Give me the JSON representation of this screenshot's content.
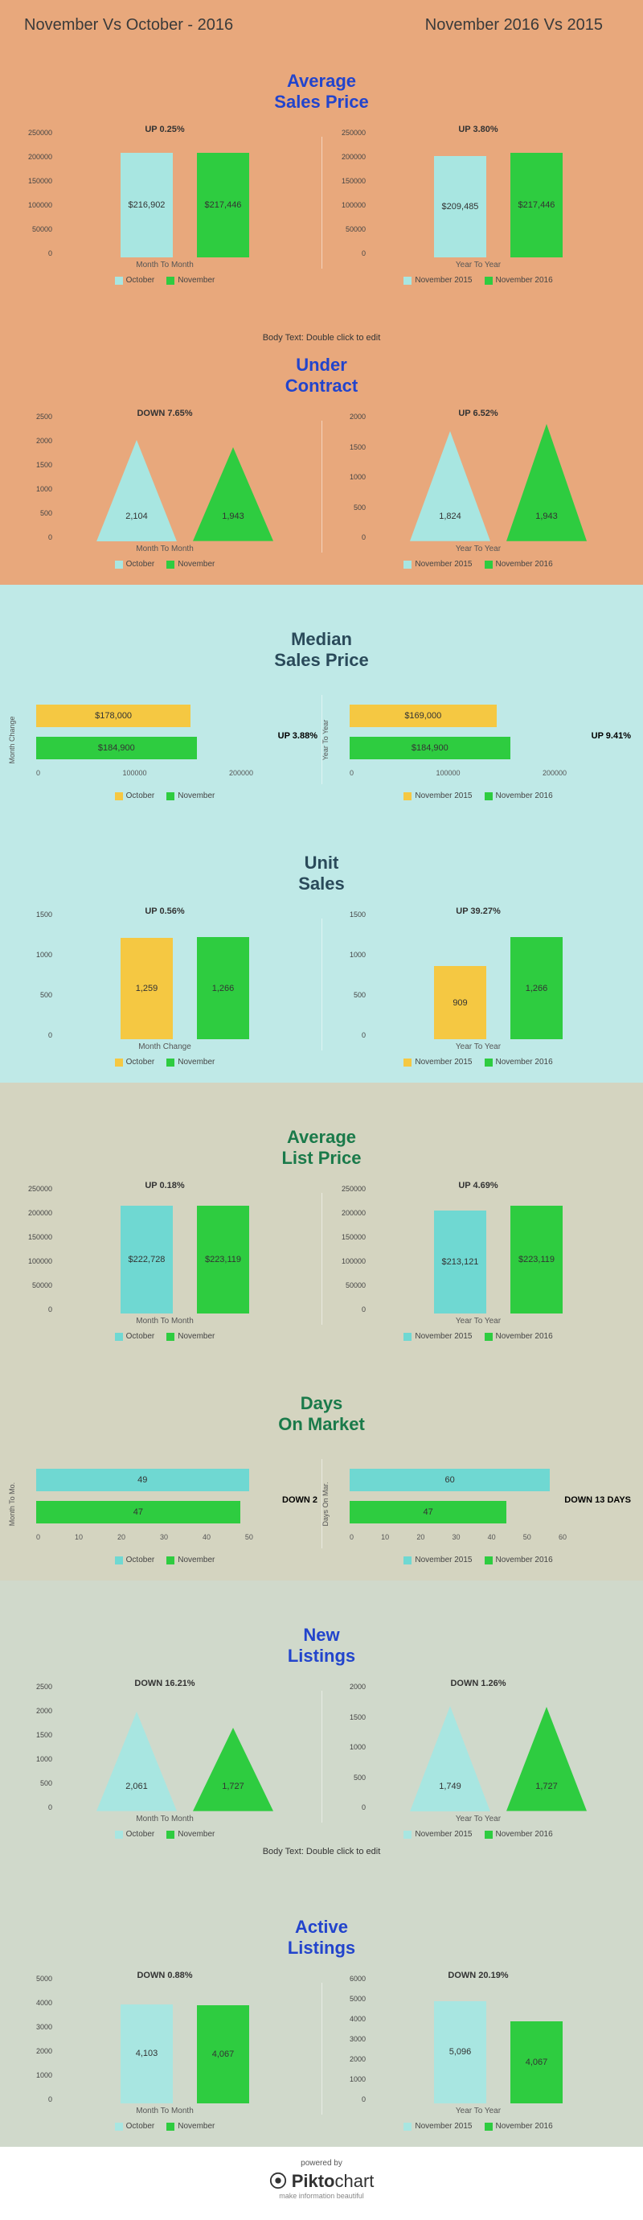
{
  "headers": {
    "left": "November Vs October - 2016",
    "right": "November 2016 Vs 2015"
  },
  "colors": {
    "cyan": "#a8e6e1",
    "green": "#2ecc40",
    "yellow": "#f5c842",
    "title_blue": "#2244cc",
    "title_dark": "#2a4a5a",
    "title_green": "#1a7a4a"
  },
  "sections": [
    {
      "bg": "sec-peach",
      "title": "Average Sales Price",
      "title_color": "#2244cc",
      "type": "bar",
      "ymax": 250000,
      "ystep": 50000,
      "left": {
        "change": "UP  0.25%",
        "a": {
          "label": "$216,902",
          "val": 216902,
          "color": "#a8e6e1"
        },
        "b": {
          "label": "$217,446",
          "val": 217446,
          "color": "#2ecc40"
        },
        "xlab": "Month To Month",
        "leg": [
          "October",
          "November"
        ]
      },
      "right": {
        "change": "UP 3.80%",
        "a": {
          "label": "$209,485",
          "val": 209485,
          "color": "#a8e6e1"
        },
        "b": {
          "label": "$217,446",
          "val": 217446,
          "color": "#2ecc40"
        },
        "xlab": "Year To Year",
        "leg": [
          "November 2015",
          "November 2016"
        ]
      }
    },
    {
      "bg": "sec-peach",
      "title": "Under Contract",
      "title_color": "#2244cc",
      "type": "triangle",
      "ymax": 2500,
      "ystep": 500,
      "body_text_above": "Body Text: Double click to edit",
      "left": {
        "change": "DOWN 7.65%",
        "a": {
          "label": "2,104",
          "val": 2104,
          "color": "#a8e6e1"
        },
        "b": {
          "label": "1,943",
          "val": 1943,
          "color": "#2ecc40"
        },
        "xlab": "Month To Month",
        "leg": [
          "October",
          "November"
        ]
      },
      "right": {
        "change": "UP 6.52%",
        "ymax_r": 2000,
        "a": {
          "label": "1,824",
          "val": 1824,
          "color": "#a8e6e1"
        },
        "b": {
          "label": "1,943",
          "val": 1943,
          "color": "#2ecc40"
        },
        "xlab": "Year To Year",
        "leg": [
          "November 2015",
          "November 2016"
        ]
      }
    },
    {
      "bg": "sec-lightblue",
      "title": "Median Sales Price",
      "title_color": "#2a4a5a",
      "type": "hbar",
      "xmax": 250000,
      "xticks": [
        "0",
        "100000",
        "200000"
      ],
      "left": {
        "change": "UP 3.88%",
        "axis": "Month Change",
        "a": {
          "label": "$178,000",
          "val": 178000,
          "color": "#f5c842"
        },
        "b": {
          "label": "$184,900",
          "val": 184900,
          "color": "#2ecc40"
        },
        "leg": [
          "October",
          "November"
        ]
      },
      "right": {
        "change": "UP 9.41%",
        "axis": "Year To Year",
        "a": {
          "label": "$169,000",
          "val": 169000,
          "color": "#f5c842"
        },
        "b": {
          "label": "$184,900",
          "val": 184900,
          "color": "#2ecc40"
        },
        "leg": [
          "November 2015",
          "November 2016"
        ]
      }
    },
    {
      "bg": "sec-lightblue",
      "title": "Unit Sales",
      "title_color": "#2a4a5a",
      "type": "bar",
      "ymax": 1500,
      "ystep": 500,
      "left": {
        "change": "UP 0.56%",
        "a": {
          "label": "1,259",
          "val": 1259,
          "color": "#f5c842"
        },
        "b": {
          "label": "1,266",
          "val": 1266,
          "color": "#2ecc40"
        },
        "xlab": "Month Change",
        "leg": [
          "October",
          "November"
        ]
      },
      "right": {
        "change": "UP 39.27%",
        "a": {
          "label": "909",
          "val": 909,
          "color": "#f5c842"
        },
        "b": {
          "label": "1,266",
          "val": 1266,
          "color": "#2ecc40"
        },
        "xlab": "Year To Year",
        "leg": [
          "November 2015",
          "November 2016"
        ]
      }
    },
    {
      "bg": "sec-tan",
      "title": "Average List Price",
      "title_color": "#1a7a4a",
      "type": "bar",
      "ymax": 250000,
      "ystep": 50000,
      "left": {
        "change": "UP  0.18%",
        "a": {
          "label": "$222,728",
          "val": 222728,
          "color": "#6fd8d2"
        },
        "b": {
          "label": "$223,119",
          "val": 223119,
          "color": "#2ecc40"
        },
        "xlab": "Month To Month",
        "leg": [
          "October",
          "November"
        ]
      },
      "right": {
        "change": "UP 4.69%",
        "a": {
          "label": "$213,121",
          "val": 213121,
          "color": "#6fd8d2"
        },
        "b": {
          "label": "$223,119",
          "val": 223119,
          "color": "#2ecc40"
        },
        "xlab": "Year To Year",
        "leg": [
          "November 2015",
          "November 2016"
        ]
      }
    },
    {
      "bg": "sec-tan",
      "title": "Days On Market",
      "title_color": "#1a7a4a",
      "type": "hbar",
      "xmax": 60,
      "xticks_l": [
        "0",
        "10",
        "20",
        "30",
        "40",
        "50"
      ],
      "xticks_r": [
        "0",
        "10",
        "20",
        "30",
        "40",
        "50",
        "60"
      ],
      "left": {
        "change": "DOWN 2",
        "axis": "Month To Mo.",
        "a": {
          "label": "49",
          "val": 49,
          "color": "#6fd8d2"
        },
        "b": {
          "label": "47",
          "val": 47,
          "color": "#2ecc40"
        },
        "leg": [
          "October",
          "November"
        ]
      },
      "right": {
        "change": "DOWN 13 DAYS",
        "axis": "Days On Mar.",
        "a": {
          "label": "60",
          "val": 60,
          "color": "#6fd8d2"
        },
        "b": {
          "label": "47",
          "val": 47,
          "color": "#2ecc40"
        },
        "leg": [
          "November 2015",
          "November 2016"
        ]
      }
    },
    {
      "bg": "sec-sage",
      "title": "New Listings",
      "title_color": "#2244cc",
      "type": "triangle",
      "ymax": 2500,
      "ystep": 500,
      "body_text_below": "Body Text: Double click to edit",
      "left": {
        "change": "DOWN 16.21%",
        "a": {
          "label": "2,061",
          "val": 2061,
          "color": "#a8e6e1"
        },
        "b": {
          "label": "1,727",
          "val": 1727,
          "color": "#2ecc40"
        },
        "xlab": "Month To Month",
        "leg": [
          "October",
          "November"
        ]
      },
      "right": {
        "change": "DOWN 1.26%",
        "ymax_r": 2000,
        "a": {
          "label": "1,749",
          "val": 1749,
          "color": "#a8e6e1"
        },
        "b": {
          "label": "1,727",
          "val": 1727,
          "color": "#2ecc40"
        },
        "xlab": "Year To Year",
        "leg": [
          "November 2015",
          "November 2016"
        ]
      }
    },
    {
      "bg": "sec-sage",
      "title": "Active Listings",
      "title_color": "#2244cc",
      "type": "bar",
      "ymax": 5000,
      "ystep": 1000,
      "ymax_r": 6000,
      "left": {
        "change": "DOWN 0.88%",
        "a": {
          "label": "4,103",
          "val": 4103,
          "color": "#a8e6e1"
        },
        "b": {
          "label": "4,067",
          "val": 4067,
          "color": "#2ecc40"
        },
        "xlab": "Month To Month",
        "leg": [
          "October",
          "November"
        ]
      },
      "right": {
        "change": "DOWN 20.19%",
        "a": {
          "label": "5,096",
          "val": 5096,
          "color": "#a8e6e1"
        },
        "b": {
          "label": "4,067",
          "val": 4067,
          "color": "#2ecc40"
        },
        "xlab": "Year To Year",
        "leg": [
          "November 2015",
          "November 2016"
        ]
      }
    }
  ],
  "footer": {
    "powered": "powered by",
    "logo_pre": "Pikto",
    "logo_post": "chart",
    "tag": "make information beautiful"
  }
}
